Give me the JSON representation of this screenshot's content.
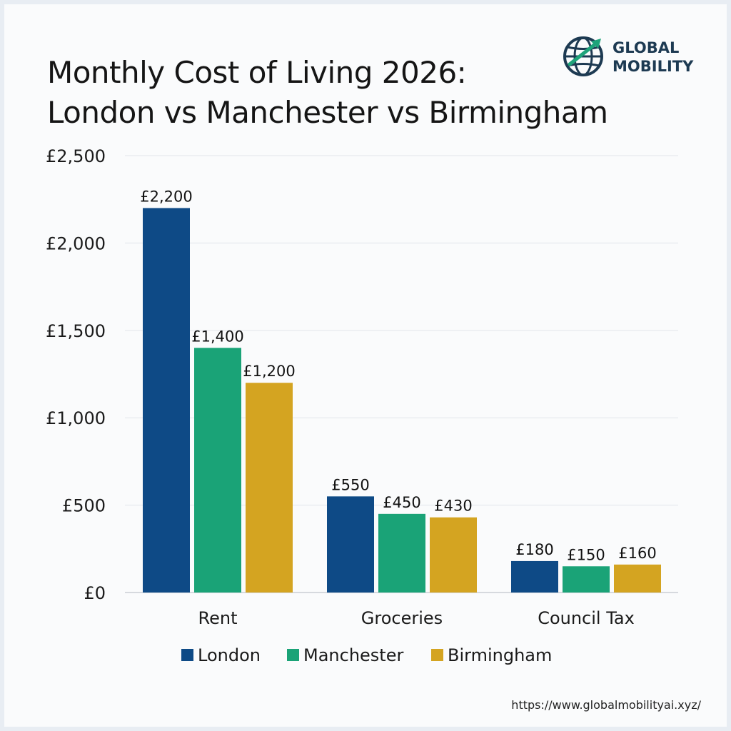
{
  "header": {
    "title_line1": "Monthly Cost of Living 2026:",
    "title_line2": "London vs Manchester vs Birmingham"
  },
  "logo": {
    "line1": "GLOBAL",
    "line2": "MOBILITY",
    "icon": "globe-arrow-icon",
    "color": "#1d3a52",
    "accent": "#1fa37a"
  },
  "footer": {
    "url": "https://www.globalmobilityai.xyz/"
  },
  "chart_data": {
    "type": "bar",
    "title": "Monthly Cost of Living 2026: London vs Manchester vs Birmingham",
    "categories": [
      "Rent",
      "Groceries",
      "Council Tax"
    ],
    "series": [
      {
        "name": "London",
        "color": "#0e4a86",
        "values": [
          2200,
          550,
          180
        ],
        "labels": [
          "£2,200",
          "£550",
          "£180"
        ]
      },
      {
        "name": "Manchester",
        "color": "#1aa377",
        "values": [
          1400,
          450,
          150
        ],
        "labels": [
          "£1,400",
          "£450",
          "£150"
        ]
      },
      {
        "name": "Birmingham",
        "color": "#d4a421",
        "values": [
          1200,
          430,
          160
        ],
        "labels": [
          "£1,200",
          "£430",
          "£160"
        ]
      }
    ],
    "ylim": [
      0,
      2500
    ],
    "yticks": [
      0,
      500,
      1000,
      1500,
      2000,
      2500
    ],
    "ytick_labels": [
      "£0",
      "£500",
      "£1,000",
      "£1,500",
      "£2,000",
      "£2,500"
    ],
    "xlabel": "",
    "ylabel": "",
    "grid": true,
    "legend": "bottom"
  }
}
